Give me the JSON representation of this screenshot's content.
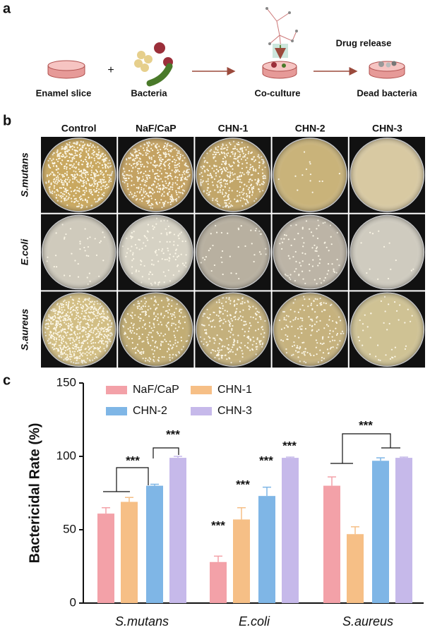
{
  "schematic": {
    "label": "a",
    "steps": [
      "Enamel slice",
      "Bacteria",
      "Co-culture",
      "Dead bacteria"
    ],
    "plus": "+",
    "arrow_label": "Drug release"
  },
  "plates": {
    "label": "b",
    "columns": [
      "Control",
      "NaF/CaP",
      "CHN-1",
      "CHN-2",
      "CHN-3"
    ],
    "rows": [
      "S.mutans",
      "E.coli",
      "S.aureus"
    ]
  },
  "chart_data": {
    "type": "bar",
    "panel_label": "c",
    "y_label": "Bactericidal Rate (%)",
    "categories": [
      "S.mutans",
      "E.coli",
      "S.aureus"
    ],
    "series": [
      {
        "name": "NaF/CaP",
        "color": "#f3a1a8",
        "values": [
          61,
          28,
          80
        ],
        "errors": [
          4,
          4,
          6
        ]
      },
      {
        "name": "CHN-1",
        "color": "#f6bf86",
        "values": [
          69,
          57,
          47
        ],
        "errors": [
          3,
          8,
          5
        ]
      },
      {
        "name": "CHN-2",
        "color": "#7fb6e6",
        "values": [
          80,
          73,
          97
        ],
        "errors": [
          1,
          6,
          2
        ]
      },
      {
        "name": "CHN-3",
        "color": "#c6b9ea",
        "values": [
          99,
          99,
          99
        ],
        "errors": [
          1,
          0.5,
          0.5
        ]
      }
    ],
    "ylim": [
      0,
      150
    ],
    "yticks": [
      0,
      50,
      100,
      150
    ],
    "legend": "upper left",
    "annotations": [
      "***",
      "***",
      "***",
      "***",
      "***",
      "***",
      "***"
    ]
  }
}
